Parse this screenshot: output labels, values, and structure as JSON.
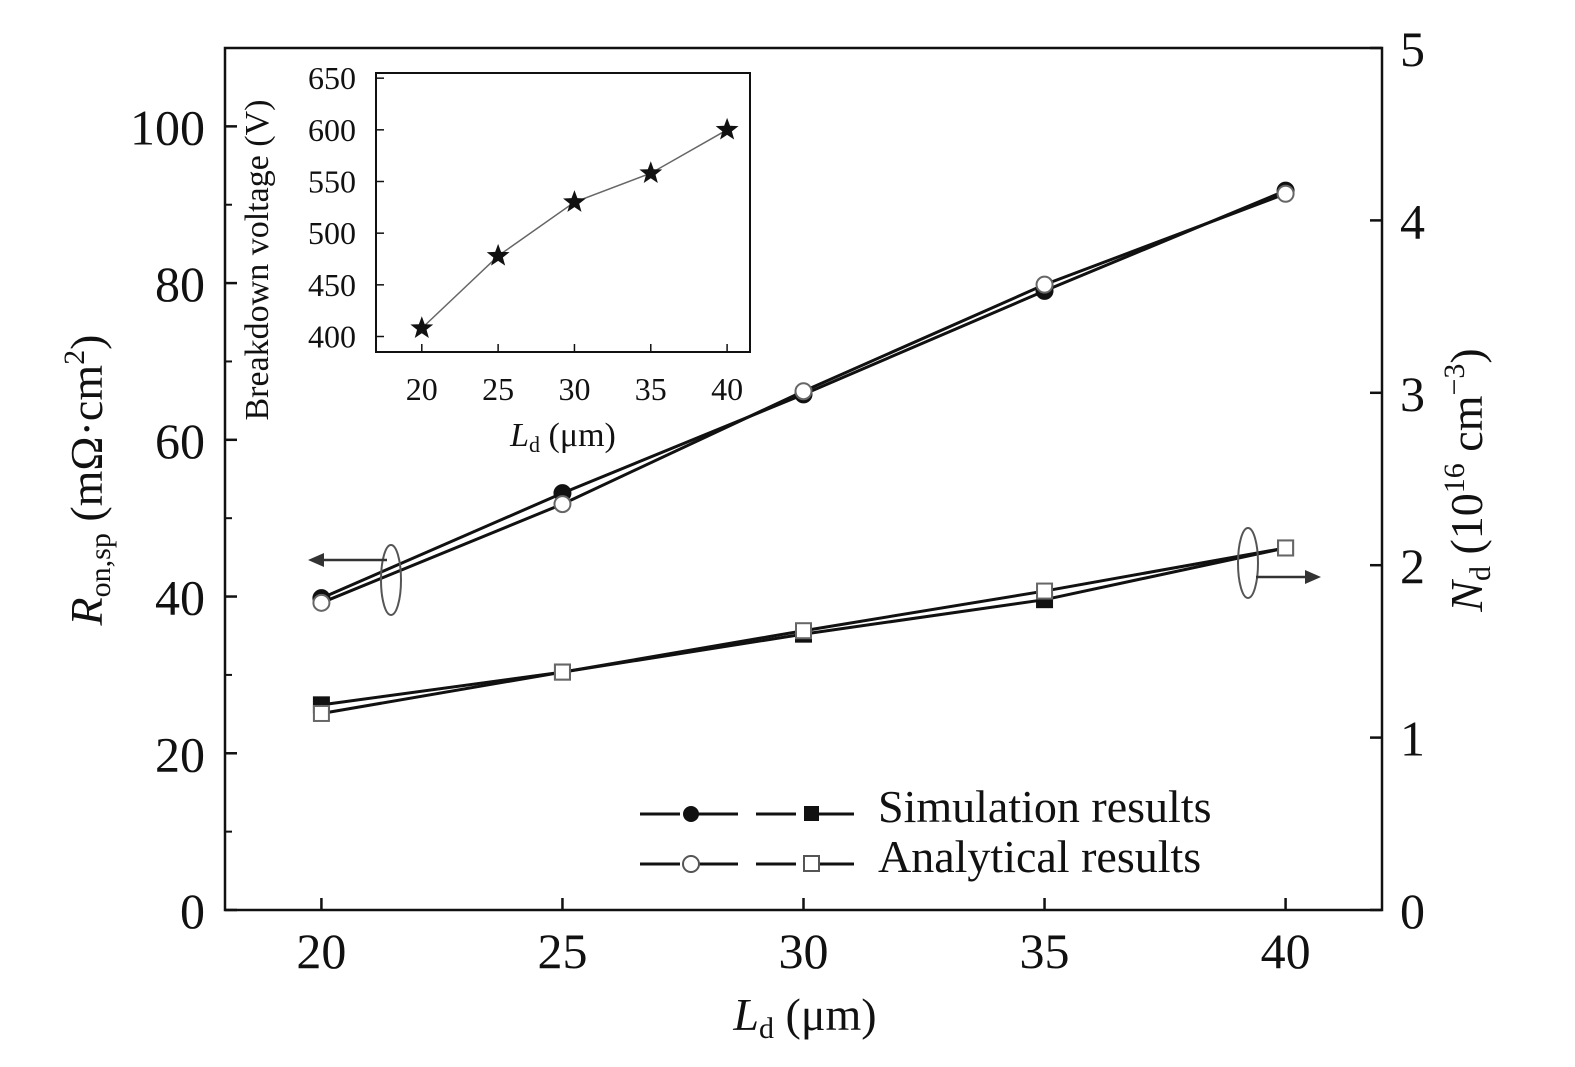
{
  "chart_data": {
    "type": "line",
    "xlabel_main": "L",
    "xlabel_sub": "d",
    "xlabel_unit": " (μm)",
    "x_ticks": [
      "20",
      "25",
      "30",
      "35",
      "40"
    ],
    "x": [
      20,
      25,
      30,
      35,
      40
    ],
    "xlim": [
      18,
      42
    ],
    "left_axis": {
      "label_main": "R",
      "label_sub": "on,sp",
      "label_unit": " (mΩ·cm",
      "label_sup": "2",
      "label_close": ")",
      "ylim": [
        0,
        110
      ],
      "tick_labels": [
        "0",
        "20",
        "40",
        "60",
        "80",
        "100"
      ],
      "tick_values": [
        0,
        20,
        40,
        60,
        80,
        100
      ]
    },
    "right_axis": {
      "label_main": "N",
      "label_sub": "d",
      "label_unit_pre": " (10",
      "label_sup1": "16",
      "label_unit_mid": " cm",
      "label_sup2": "−3",
      "label_close": ")",
      "ylim": [
        0,
        5
      ],
      "tick_labels": [
        "0",
        "1",
        "2",
        "3",
        "4",
        "5"
      ],
      "tick_values": [
        0,
        1,
        2,
        3,
        4,
        5
      ]
    },
    "series": [
      {
        "name": "Ron,sp simulation",
        "axis": "left",
        "marker": "filled-circle",
        "values": [
          39.8,
          53.2,
          65.8,
          79.0,
          91.8
        ]
      },
      {
        "name": "Ron,sp analytical",
        "axis": "left",
        "marker": "open-circle",
        "values": [
          39.2,
          51.8,
          66.2,
          79.8,
          91.4
        ]
      },
      {
        "name": "Nd simulation",
        "axis": "right",
        "marker": "filled-square",
        "values": [
          1.19,
          1.38,
          1.6,
          1.8,
          2.1
        ]
      },
      {
        "name": "Nd analytical",
        "axis": "right",
        "marker": "open-square",
        "values": [
          1.14,
          1.38,
          1.62,
          1.85,
          2.1
        ]
      }
    ],
    "legend": [
      {
        "label": "Simulation results",
        "filled": true
      },
      {
        "label": "Analytical results",
        "filled": false
      }
    ],
    "inset": {
      "type": "line",
      "ylabel": "Breakdown voltage (V)",
      "xlabel_main": "L",
      "xlabel_sub": "d",
      "xlabel_unit": " (μm)",
      "x": [
        20,
        25,
        30,
        35,
        40
      ],
      "values": [
        408,
        478,
        530,
        558,
        600
      ],
      "x_ticks": [
        "20",
        "25",
        "30",
        "35",
        "40"
      ],
      "y_ticks": [
        "400",
        "450",
        "500",
        "550",
        "600",
        "650"
      ],
      "y_tick_values": [
        400,
        450,
        500,
        550,
        600,
        650
      ],
      "xlim": [
        17,
        41.5
      ],
      "ylim": [
        385,
        655
      ],
      "marker": "star"
    }
  }
}
